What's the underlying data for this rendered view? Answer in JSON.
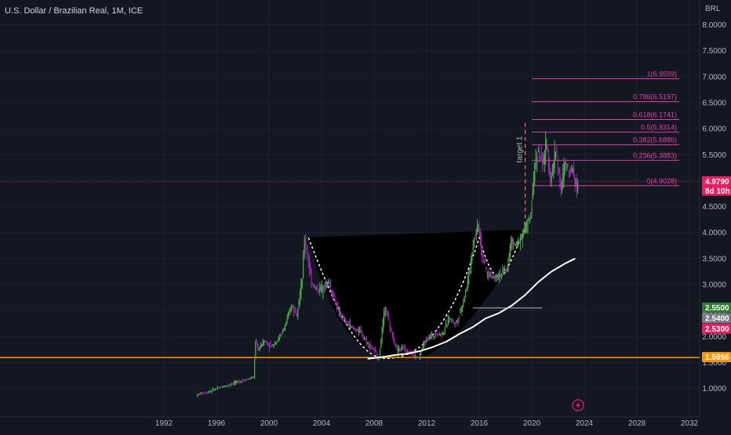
{
  "chart_data": {
    "type": "candlestick",
    "title": "U.S. Dollar / Brazilian Real, 1M, ICE",
    "currency": "BRL",
    "x_ticks": [
      "1992",
      "1996",
      "2000",
      "2004",
      "2008",
      "2012",
      "2016",
      "2020",
      "2024",
      "2028",
      "2032"
    ],
    "y_ticks": [
      "8.0000",
      "7.5000",
      "7.0000",
      "6.5000",
      "6.0000",
      "5.5000",
      "5.0000",
      "4.5000",
      "4.0000",
      "3.5000",
      "3.0000",
      "2.5000",
      "2.0000",
      "1.5000",
      "1.0000"
    ],
    "y_range": [
      0.6,
      8.4
    ],
    "x_range": [
      1990.0,
      2035.0
    ],
    "price_series": [
      [
        1994.5,
        0.85
      ],
      [
        1994.8,
        0.9
      ],
      [
        1995.3,
        0.92
      ],
      [
        1996.0,
        0.99
      ],
      [
        1997.0,
        1.07
      ],
      [
        1998.0,
        1.15
      ],
      [
        1998.9,
        1.21
      ],
      [
        1999.05,
        1.9
      ],
      [
        1999.3,
        1.75
      ],
      [
        1999.7,
        1.92
      ],
      [
        2000.2,
        1.8
      ],
      [
        2000.8,
        1.95
      ],
      [
        2001.3,
        2.2
      ],
      [
        2001.8,
        2.6
      ],
      [
        2002.2,
        2.45
      ],
      [
        2002.6,
        3.1
      ],
      [
        2002.8,
        3.9
      ],
      [
        2003.0,
        3.55
      ],
      [
        2003.3,
        3.05
      ],
      [
        2003.7,
        2.9
      ],
      [
        2004.2,
        2.95
      ],
      [
        2004.6,
        3.05
      ],
      [
        2005.0,
        2.75
      ],
      [
        2005.5,
        2.4
      ],
      [
        2006.0,
        2.25
      ],
      [
        2006.5,
        2.15
      ],
      [
        2007.0,
        2.1
      ],
      [
        2007.5,
        1.9
      ],
      [
        2008.0,
        1.75
      ],
      [
        2008.45,
        1.58
      ],
      [
        2008.75,
        2.3
      ],
      [
        2008.95,
        2.55
      ],
      [
        2009.3,
        2.15
      ],
      [
        2009.8,
        1.75
      ],
      [
        2010.3,
        1.78
      ],
      [
        2010.8,
        1.68
      ],
      [
        2011.5,
        1.58
      ],
      [
        2011.8,
        1.85
      ],
      [
        2012.3,
        2.0
      ],
      [
        2012.8,
        2.05
      ],
      [
        2013.3,
        2.05
      ],
      [
        2013.8,
        2.35
      ],
      [
        2014.3,
        2.25
      ],
      [
        2014.8,
        2.6
      ],
      [
        2015.2,
        3.05
      ],
      [
        2015.7,
        3.9
      ],
      [
        2016.0,
        4.15
      ],
      [
        2016.3,
        3.55
      ],
      [
        2016.7,
        3.2
      ],
      [
        2017.2,
        3.15
      ],
      [
        2017.7,
        3.2
      ],
      [
        2018.2,
        3.3
      ],
      [
        2018.5,
        3.85
      ],
      [
        2018.9,
        3.75
      ],
      [
        2019.3,
        3.95
      ],
      [
        2019.7,
        4.15
      ],
      [
        2020.0,
        4.3
      ],
      [
        2020.3,
        5.3
      ],
      [
        2020.5,
        5.6
      ],
      [
        2020.9,
        5.3
      ],
      [
        2021.2,
        5.7
      ],
      [
        2021.5,
        5.0
      ],
      [
        2021.9,
        5.6
      ],
      [
        2022.3,
        4.8
      ],
      [
        2022.6,
        5.35
      ],
      [
        2022.9,
        5.2
      ],
      [
        2023.2,
        5.25
      ],
      [
        2023.5,
        4.82
      ],
      [
        2023.6,
        4.98
      ]
    ],
    "moving_average": [
      [
        2007.5,
        1.57
      ],
      [
        2008.5,
        1.6
      ],
      [
        2009.5,
        1.64
      ],
      [
        2010.5,
        1.67
      ],
      [
        2011.5,
        1.72
      ],
      [
        2012.5,
        1.8
      ],
      [
        2013.5,
        1.9
      ],
      [
        2014.5,
        2.05
      ],
      [
        2015.5,
        2.18
      ],
      [
        2016.5,
        2.35
      ],
      [
        2017.5,
        2.45
      ],
      [
        2018.5,
        2.6
      ],
      [
        2019.5,
        2.8
      ],
      [
        2020.5,
        3.05
      ],
      [
        2021.5,
        3.25
      ],
      [
        2022.5,
        3.4
      ],
      [
        2023.3,
        3.5
      ]
    ],
    "horizontal_support": 1.5956,
    "current_price": 4.979,
    "fibonacci_levels": [
      {
        "label": "1(6.9599)",
        "value": 6.9599
      },
      {
        "label": "0.786(6.5197)",
        "value": 6.5197
      },
      {
        "label": "0.618(6.1741)",
        "value": 6.1741
      },
      {
        "label": "0.5(5.9314)",
        "value": 5.9314
      },
      {
        "label": "0.382(5.6886)",
        "value": 5.6886
      },
      {
        "label": "0.236(5.3883)",
        "value": 5.3883
      },
      {
        "label": "0(4.9028)",
        "value": 4.9028
      }
    ],
    "cup_rim": {
      "left": [
        2003.0,
        3.9
      ],
      "right": [
        2019.5,
        4.05
      ]
    },
    "cup_bottom": [
      2008.6,
      1.58
    ],
    "handle_line": {
      "from": 2015.5,
      "to": 2020.8,
      "value": 2.55
    },
    "target_annotation": {
      "label": "target 1",
      "x": 2019.5,
      "from": 4.0,
      "to": 6.15
    },
    "price_tags": [
      {
        "text": "4.9790",
        "value": 4.979,
        "bg": "#e91e63",
        "kind": "current"
      },
      {
        "text": "8d 10h",
        "value": 4.979,
        "bg": "#e91e63",
        "kind": "countdown"
      },
      {
        "text": "2.5500",
        "value": 2.55,
        "bg": "#2e7d32"
      },
      {
        "text": "2.5400",
        "value": 2.54,
        "bg": "#787b86"
      },
      {
        "text": "2.5300",
        "value": 2.53,
        "bg": "#e91e63"
      },
      {
        "text": "1.5956",
        "value": 1.5956,
        "bg": "#ff9800"
      }
    ]
  },
  "colors": {
    "background": "#131722",
    "up": "#4caf50",
    "down": "#9c27b0",
    "fib": "#e040a8",
    "support": "#ff9800",
    "ma": "#ffffff",
    "axis_text": "#b2b5be"
  },
  "icons": {
    "replay": "lightning-icon"
  }
}
